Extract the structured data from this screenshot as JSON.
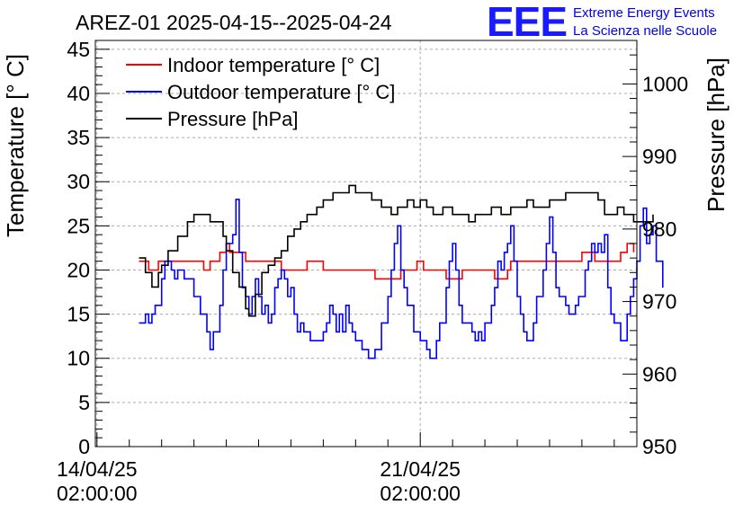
{
  "header": {
    "title": "AREZ-01 2025-04-15--2025-04-24",
    "logo_text": "EEE",
    "logo_line1": "Extreme Energy Events",
    "logo_line2": "La Scienza nelle Scuole"
  },
  "chart_data": {
    "type": "line",
    "title": "AREZ-01 2025-04-15--2025-04-24",
    "ylabel": "Temperature [° C]",
    "y2label": "Pressure [hPa]",
    "xlabel": "",
    "ylim": [
      0,
      46
    ],
    "y2lim": [
      950,
      1006
    ],
    "xlim_days": [
      -0.05,
      16.7
    ],
    "x_ticks": [
      {
        "day": 0,
        "line1": "14/04/25",
        "line2": "02:00:00"
      },
      {
        "day": 10,
        "line1": "21/04/25",
        "line2": "02:00:00"
      }
    ],
    "y_ticks": [
      0,
      5,
      10,
      15,
      20,
      25,
      30,
      35,
      40,
      45
    ],
    "y2_ticks": [
      950,
      960,
      970,
      980,
      990,
      1000
    ],
    "grid": true,
    "legend": "top-left",
    "series": [
      {
        "name": "Indoor temperature [° C]",
        "axis": "left",
        "color": "#ff0000",
        "points": [
          [
            1.3,
            21
          ],
          [
            1.6,
            20
          ],
          [
            1.9,
            21
          ],
          [
            2.2,
            21
          ],
          [
            3.0,
            21
          ],
          [
            3.3,
            20
          ],
          [
            3.5,
            21
          ],
          [
            3.8,
            22
          ],
          [
            3.9,
            22
          ],
          [
            4.0,
            23
          ],
          [
            4.1,
            22
          ],
          [
            4.3,
            22
          ],
          [
            4.5,
            22
          ],
          [
            4.6,
            21
          ],
          [
            5.0,
            21
          ],
          [
            5.6,
            21
          ],
          [
            5.7,
            20
          ],
          [
            6.2,
            20
          ],
          [
            6.5,
            21
          ],
          [
            6.9,
            21
          ],
          [
            7.0,
            20
          ],
          [
            7.5,
            20
          ],
          [
            8.0,
            20
          ],
          [
            8.5,
            20
          ],
          [
            8.6,
            19
          ],
          [
            9.1,
            19
          ],
          [
            9.4,
            20
          ],
          [
            9.8,
            20
          ],
          [
            9.9,
            21
          ],
          [
            10.1,
            20
          ],
          [
            10.2,
            20
          ],
          [
            10.7,
            20
          ],
          [
            10.8,
            19
          ],
          [
            11.1,
            19
          ],
          [
            11.3,
            20
          ],
          [
            11.7,
            20
          ],
          [
            12.0,
            20
          ],
          [
            12.2,
            20
          ],
          [
            12.3,
            19
          ],
          [
            12.5,
            19
          ],
          [
            12.7,
            20
          ],
          [
            12.8,
            21
          ],
          [
            13.0,
            21
          ],
          [
            13.2,
            21
          ],
          [
            13.5,
            21
          ],
          [
            13.9,
            21
          ],
          [
            14.0,
            21
          ],
          [
            14.8,
            21
          ],
          [
            15.0,
            22
          ],
          [
            15.2,
            22
          ],
          [
            15.4,
            21
          ],
          [
            15.9,
            21
          ],
          [
            16.2,
            22
          ],
          [
            16.4,
            23
          ],
          [
            16.5,
            23
          ],
          [
            16.6,
            22
          ]
        ]
      },
      {
        "name": "Outdoor temperature [° C]",
        "axis": "left",
        "color": "#0000ff",
        "points": [
          [
            1.3,
            14
          ],
          [
            1.4,
            14
          ],
          [
            1.5,
            15
          ],
          [
            1.6,
            14
          ],
          [
            1.7,
            15
          ],
          [
            1.8,
            16
          ],
          [
            2.0,
            19
          ],
          [
            2.1,
            21
          ],
          [
            2.2,
            21
          ],
          [
            2.3,
            20
          ],
          [
            2.4,
            19
          ],
          [
            2.5,
            20
          ],
          [
            2.7,
            19
          ],
          [
            2.9,
            19
          ],
          [
            3.0,
            17
          ],
          [
            3.2,
            15
          ],
          [
            3.4,
            13
          ],
          [
            3.5,
            11
          ],
          [
            3.6,
            13
          ],
          [
            3.8,
            16
          ],
          [
            3.9,
            20
          ],
          [
            4.0,
            23
          ],
          [
            4.2,
            24
          ],
          [
            4.3,
            28
          ],
          [
            4.4,
            22
          ],
          [
            4.5,
            18
          ],
          [
            4.6,
            17
          ],
          [
            4.7,
            15
          ],
          [
            4.8,
            17
          ],
          [
            4.9,
            19
          ],
          [
            5.0,
            17
          ],
          [
            5.1,
            15
          ],
          [
            5.2,
            16
          ],
          [
            5.3,
            14
          ],
          [
            5.4,
            15
          ],
          [
            5.5,
            18
          ],
          [
            5.6,
            19
          ],
          [
            5.7,
            20
          ],
          [
            5.8,
            19
          ],
          [
            5.9,
            17
          ],
          [
            6.0,
            18
          ],
          [
            6.1,
            15
          ],
          [
            6.2,
            13
          ],
          [
            6.3,
            14
          ],
          [
            6.4,
            13
          ],
          [
            6.5,
            13
          ],
          [
            6.6,
            12
          ],
          [
            6.9,
            12
          ],
          [
            7.0,
            13
          ],
          [
            7.1,
            14
          ],
          [
            7.2,
            16
          ],
          [
            7.3,
            15
          ],
          [
            7.4,
            13
          ],
          [
            7.5,
            15
          ],
          [
            7.6,
            13
          ],
          [
            7.7,
            16
          ],
          [
            7.8,
            14
          ],
          [
            7.9,
            13
          ],
          [
            8.0,
            12
          ],
          [
            8.2,
            11
          ],
          [
            8.3,
            11
          ],
          [
            8.4,
            10
          ],
          [
            8.6,
            11
          ],
          [
            8.7,
            11
          ],
          [
            8.8,
            14
          ],
          [
            8.9,
            14
          ],
          [
            9.0,
            17
          ],
          [
            9.1,
            20
          ],
          [
            9.2,
            23
          ],
          [
            9.3,
            25
          ],
          [
            9.4,
            20
          ],
          [
            9.5,
            18
          ],
          [
            9.6,
            16
          ],
          [
            9.8,
            13
          ],
          [
            9.9,
            13
          ],
          [
            10.0,
            12
          ],
          [
            10.1,
            12
          ],
          [
            10.2,
            11
          ],
          [
            10.3,
            10
          ],
          [
            10.4,
            10
          ],
          [
            10.5,
            12
          ],
          [
            10.6,
            14
          ],
          [
            10.8,
            18
          ],
          [
            10.9,
            21
          ],
          [
            11.0,
            23
          ],
          [
            11.1,
            20
          ],
          [
            11.2,
            16
          ],
          [
            11.3,
            14
          ],
          [
            11.4,
            14
          ],
          [
            11.6,
            13
          ],
          [
            11.7,
            12
          ],
          [
            11.8,
            13
          ],
          [
            11.9,
            12
          ],
          [
            12.0,
            14
          ],
          [
            12.1,
            14
          ],
          [
            12.2,
            16
          ],
          [
            12.3,
            18
          ],
          [
            12.4,
            21
          ],
          [
            12.5,
            20
          ],
          [
            12.6,
            22
          ],
          [
            12.7,
            23
          ],
          [
            12.8,
            25
          ],
          [
            12.9,
            21
          ],
          [
            13.0,
            17
          ],
          [
            13.1,
            15
          ],
          [
            13.2,
            13
          ],
          [
            13.3,
            12
          ],
          [
            13.4,
            12
          ],
          [
            13.5,
            14
          ],
          [
            13.6,
            17
          ],
          [
            13.8,
            20
          ],
          [
            13.9,
            23
          ],
          [
            14.0,
            26
          ],
          [
            14.1,
            22
          ],
          [
            14.2,
            18
          ],
          [
            14.3,
            17
          ],
          [
            14.5,
            16
          ],
          [
            14.6,
            15
          ],
          [
            14.8,
            16
          ],
          [
            14.9,
            17
          ],
          [
            15.1,
            20
          ],
          [
            15.2,
            21
          ],
          [
            15.3,
            23
          ],
          [
            15.4,
            22
          ],
          [
            15.5,
            23
          ],
          [
            15.6,
            22
          ],
          [
            15.7,
            24
          ],
          [
            15.8,
            18
          ],
          [
            15.9,
            15
          ],
          [
            16.0,
            14
          ],
          [
            16.2,
            12
          ],
          [
            16.4,
            15
          ],
          [
            16.5,
            17
          ],
          [
            16.6,
            19
          ],
          [
            16.7,
            21
          ],
          [
            16.8,
            25
          ],
          [
            16.9,
            27
          ],
          [
            17.0,
            23
          ],
          [
            17.1,
            24
          ],
          [
            17.2,
            25
          ],
          [
            17.3,
            21
          ],
          [
            17.5,
            18
          ]
        ]
      },
      {
        "name": "Pressure [hPa]",
        "axis": "right",
        "color": "#000000",
        "points": [
          [
            1.3,
            976
          ],
          [
            1.5,
            974
          ],
          [
            1.7,
            972
          ],
          [
            1.9,
            974
          ],
          [
            2.0,
            975
          ],
          [
            2.2,
            977
          ],
          [
            2.5,
            979
          ],
          [
            2.8,
            981
          ],
          [
            3.0,
            982
          ],
          [
            3.3,
            982
          ],
          [
            3.5,
            981
          ],
          [
            3.8,
            981
          ],
          [
            3.9,
            979
          ],
          [
            4.0,
            977
          ],
          [
            4.2,
            974
          ],
          [
            4.4,
            972
          ],
          [
            4.6,
            969
          ],
          [
            4.7,
            968
          ],
          [
            4.9,
            971
          ],
          [
            5.1,
            974
          ],
          [
            5.3,
            975
          ],
          [
            5.5,
            976
          ],
          [
            5.7,
            977
          ],
          [
            5.9,
            979
          ],
          [
            6.1,
            980
          ],
          [
            6.3,
            981
          ],
          [
            6.5,
            982
          ],
          [
            6.8,
            983
          ],
          [
            7.0,
            984
          ],
          [
            7.3,
            985
          ],
          [
            7.6,
            985
          ],
          [
            7.8,
            986
          ],
          [
            8.0,
            985
          ],
          [
            8.3,
            985
          ],
          [
            8.5,
            984
          ],
          [
            8.8,
            983
          ],
          [
            9.1,
            982
          ],
          [
            9.3,
            983
          ],
          [
            9.6,
            984
          ],
          [
            9.8,
            983
          ],
          [
            10.0,
            984
          ],
          [
            10.2,
            983
          ],
          [
            10.4,
            982
          ],
          [
            10.7,
            983
          ],
          [
            11.0,
            982
          ],
          [
            11.3,
            982
          ],
          [
            11.5,
            981
          ],
          [
            11.7,
            982
          ],
          [
            12.0,
            982
          ],
          [
            12.2,
            983
          ],
          [
            12.5,
            982
          ],
          [
            12.8,
            983
          ],
          [
            13.0,
            983
          ],
          [
            13.3,
            984
          ],
          [
            13.5,
            983
          ],
          [
            13.8,
            983
          ],
          [
            14.0,
            984
          ],
          [
            14.2,
            984
          ],
          [
            14.5,
            985
          ],
          [
            14.8,
            985
          ],
          [
            15.0,
            985
          ],
          [
            15.3,
            985
          ],
          [
            15.5,
            984
          ],
          [
            15.7,
            982
          ],
          [
            15.9,
            982
          ],
          [
            16.1,
            983
          ],
          [
            16.3,
            982
          ],
          [
            16.6,
            981
          ],
          [
            16.8,
            981
          ],
          [
            17.0,
            981
          ],
          [
            17.2,
            982
          ]
        ]
      }
    ]
  }
}
